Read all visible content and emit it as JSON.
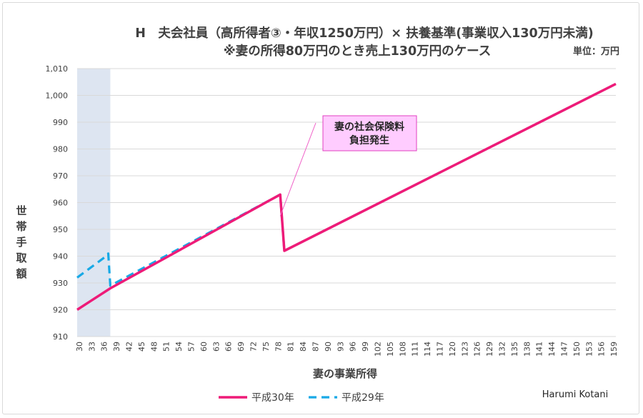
{
  "chart_data": {
    "type": "line",
    "title_line1": "H　夫会社員（高所得者③・年収1250万円）× 扶養基準(事業収入130万円未満)",
    "title_line2": "※妻の所得80万円のとき売上130万円のケース",
    "unit_label": "単位：万円",
    "xlabel": "妻の事業所得",
    "ylabel": "世帯手取額",
    "ylim": [
      910,
      1010
    ],
    "yticks": [
      "910",
      "920",
      "930",
      "940",
      "950",
      "960",
      "970",
      "980",
      "990",
      "1,000",
      "1,010"
    ],
    "xlim": [
      30,
      160
    ],
    "xticks": [
      "30",
      "33",
      "36",
      "39",
      "42",
      "45",
      "48",
      "51",
      "54",
      "57",
      "60",
      "63",
      "66",
      "69",
      "72",
      "75",
      "78",
      "81",
      "84",
      "87",
      "90",
      "93",
      "96",
      "99",
      "102",
      "105",
      "108",
      "111",
      "114",
      "117",
      "120",
      "123",
      "126",
      "129",
      "132",
      "135",
      "138",
      "141",
      "144",
      "147",
      "150",
      "153",
      "156",
      "159"
    ],
    "shaded_region": [
      30,
      38
    ],
    "grid": true,
    "legend_position": "bottom",
    "series": [
      {
        "name": "平成30年",
        "color": "#ee1b78",
        "style": "solid",
        "points": [
          [
            30,
            920
          ],
          [
            38,
            928
          ],
          [
            79,
            963
          ],
          [
            80,
            942
          ],
          [
            160,
            1004.3
          ]
        ]
      },
      {
        "name": "平成29年",
        "color": "#17a9e6",
        "style": "dashed",
        "points": [
          [
            30,
            932
          ],
          [
            37,
            940
          ],
          [
            37.5,
            941
          ],
          [
            38,
            929
          ],
          [
            79,
            963
          ],
          [
            80,
            942
          ],
          [
            160,
            1004.3
          ]
        ]
      }
    ],
    "annotation": {
      "lines": [
        "妻の社会保険料",
        "負担発生"
      ],
      "target": [
        79,
        955
      ],
      "fill": "#ffccff",
      "border": "#e040c0"
    },
    "credit": "Harumi Kotani"
  }
}
